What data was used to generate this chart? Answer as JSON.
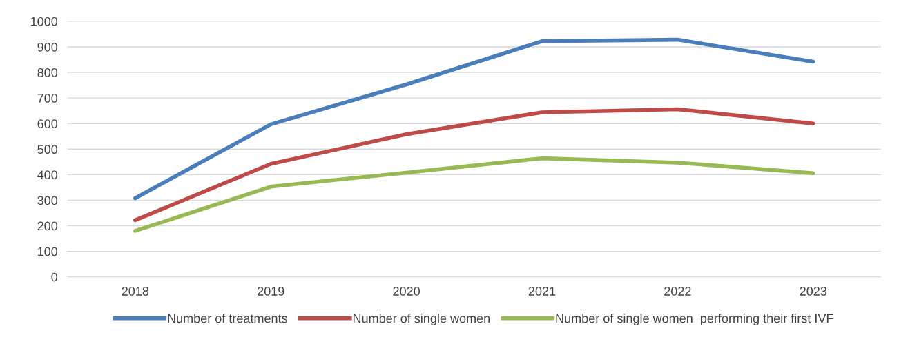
{
  "chart_data": {
    "type": "line",
    "categories": [
      "2018",
      "2019",
      "2020",
      "2021",
      "2022",
      "2023"
    ],
    "series": [
      {
        "name": "Number of treatments",
        "color": "#4a7ebb",
        "values": [
          308,
          597,
          753,
          922,
          928,
          842
        ]
      },
      {
        "name": "Number of single women",
        "color": "#be4b48",
        "values": [
          222,
          442,
          558,
          644,
          656,
          600
        ]
      },
      {
        "name": "Number of single women  performing their first IVF",
        "color": "#98b954",
        "values": [
          180,
          353,
          408,
          464,
          447,
          406
        ]
      }
    ],
    "ylim": [
      0,
      1000
    ],
    "yticks": [
      0,
      100,
      200,
      300,
      400,
      500,
      600,
      700,
      800,
      900,
      1000
    ],
    "grid": "y",
    "legend": "bottom",
    "marker": "none",
    "line_style": "solid"
  }
}
